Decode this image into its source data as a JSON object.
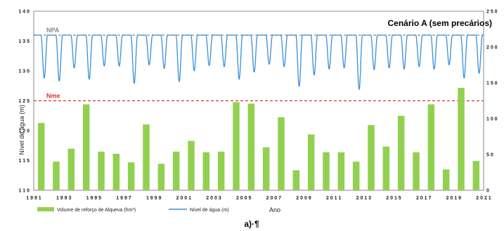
{
  "chart_data": {
    "type": "bar+line",
    "title": "Cenário A (sem precários)",
    "caption": "a)·¶",
    "xlabel": "Ano",
    "ylabel_left": "Nível de água (m)",
    "xlim": [
      1991,
      2021
    ],
    "ylim_left": [
      110,
      140
    ],
    "ylim_right": [
      0,
      25
    ],
    "yticks_left": [
      "1 1 0",
      "1 1 5",
      "1 2 0",
      "1 2 5",
      "1 3 0",
      "1 3 5",
      "1 4 0"
    ],
    "yticks_right": [
      "0",
      "5 0",
      "1 0 0",
      "1 5 0",
      "2 0 0",
      "2 5 0"
    ],
    "xticks": [
      "1 9 9 1",
      "1 9 9 3",
      "1 9 9 5",
      "1 9 9 7",
      "1 9 9 9",
      "2 0 0 1",
      "2 0 0 3",
      "2 0 0 5",
      "2 0 0 7",
      "2 0 0 9",
      "2 0 1 1",
      "2 0 1 3",
      "2 0 1 5",
      "2 0 1 7",
      "2 0 1 9",
      "2 0 2 1"
    ],
    "xtick_years": [
      1991,
      1993,
      1995,
      1997,
      1999,
      2001,
      2003,
      2005,
      2007,
      2009,
      2011,
      2013,
      2015,
      2017,
      2019,
      2021
    ],
    "reference_lines": [
      {
        "label": "NPA",
        "value": 136,
        "color": "#888888"
      },
      {
        "label": "Nme",
        "value": 125,
        "color": "#e03030"
      }
    ],
    "series": [
      {
        "name": "Volume de reforço de Alqueva (hm³)",
        "type": "bar",
        "axis": "right",
        "color": "#92d050",
        "x": [
          1991.5,
          1992.5,
          1993.5,
          1994.5,
          1995.5,
          1996.5,
          1997.5,
          1998.5,
          1999.5,
          2000.5,
          2001.5,
          2002.5,
          2003.5,
          2004.5,
          2005.5,
          2006.5,
          2007.5,
          2008.5,
          2009.5,
          2010.5,
          2011.5,
          2012.5,
          2013.5,
          2014.5,
          2015.5,
          2016.5,
          2017.5,
          2018.5,
          2019.5,
          2020.5
        ],
        "values": [
          9.4,
          4.0,
          5.8,
          12.0,
          5.4,
          5.1,
          3.9,
          9.2,
          3.7,
          5.4,
          6.9,
          5.3,
          5.4,
          12.3,
          12.1,
          6.0,
          10.2,
          2.8,
          7.8,
          5.3,
          5.3,
          4.0,
          9.1,
          6.1,
          10.4,
          5.3,
          12.0,
          2.9,
          14.3,
          4.1
        ]
      },
      {
        "name": "Nível de água (m)",
        "type": "line",
        "axis": "left",
        "color": "#3a8fd9",
        "annual_minima_years": [
          1991.7,
          1992.7,
          1993.7,
          1994.7,
          1995.7,
          1996.7,
          1997.7,
          1998.7,
          1999.7,
          2000.7,
          2001.7,
          2002.7,
          2003.7,
          2004.7,
          2005.7,
          2006.7,
          2007.7,
          2008.7,
          2009.7,
          2010.7,
          2011.7,
          2012.7,
          2013.7,
          2014.7,
          2015.7,
          2016.7,
          2017.7,
          2018.7,
          2019.7,
          2020.7
        ],
        "annual_minima": [
          128.8,
          128.3,
          130.5,
          128.6,
          130.8,
          130.8,
          127.9,
          131.0,
          130.4,
          128.2,
          130.0,
          130.9,
          130.7,
          128.6,
          129.8,
          131.1,
          130.7,
          127.4,
          129.3,
          130.3,
          130.5,
          126.9,
          130.2,
          130.5,
          130.3,
          130.7,
          130.3,
          131.0,
          128.8,
          129.6
        ],
        "maximum": 136
      }
    ],
    "legend_position": "bottom-left"
  }
}
